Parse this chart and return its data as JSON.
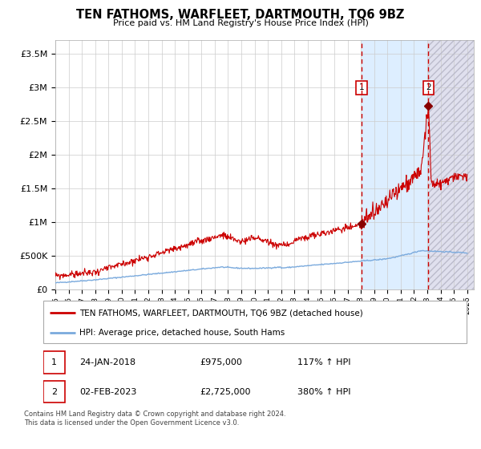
{
  "title": "TEN FATHOMS, WARFLEET, DARTMOUTH, TQ6 9BZ",
  "subtitle": "Price paid vs. HM Land Registry's House Price Index (HPI)",
  "ylabel_values": [
    "£0",
    "£500K",
    "£1M",
    "£1.5M",
    "£2M",
    "£2.5M",
    "£3M",
    "£3.5M"
  ],
  "y_ticks": [
    0,
    500000,
    1000000,
    1500000,
    2000000,
    2500000,
    3000000,
    3500000
  ],
  "ylim": [
    0,
    3700000
  ],
  "xlim_start": 1995.0,
  "xlim_end": 2026.5,
  "x_ticks": [
    1995,
    1996,
    1997,
    1998,
    1999,
    2000,
    2001,
    2002,
    2003,
    2004,
    2005,
    2006,
    2007,
    2008,
    2009,
    2010,
    2011,
    2012,
    2013,
    2014,
    2015,
    2016,
    2017,
    2018,
    2019,
    2020,
    2021,
    2022,
    2023,
    2024,
    2025,
    2026
  ],
  "hpi_color": "#7aaadd",
  "price_color": "#cc0000",
  "marker_color": "#880000",
  "vline_color": "#cc0000",
  "shade1_color": "#ddeeff",
  "shade2_color": "#e0e0ee",
  "point1_x": 2018.07,
  "point1_y": 975000,
  "point2_x": 2023.09,
  "point2_y": 2725000,
  "legend_label1": "TEN FATHOMS, WARFLEET, DARTMOUTH, TQ6 9BZ (detached house)",
  "legend_label2": "HPI: Average price, detached house, South Hams",
  "table_date1": "24-JAN-2018",
  "table_price1": "£975,000",
  "table_hpi1": "117% ↑ HPI",
  "table_date2": "02-FEB-2023",
  "table_price2": "£2,725,000",
  "table_hpi2": "380% ↑ HPI",
  "footer": "Contains HM Land Registry data © Crown copyright and database right 2024.\nThis data is licensed under the Open Government Licence v3.0.",
  "background_color": "#ffffff",
  "grid_color": "#cccccc"
}
